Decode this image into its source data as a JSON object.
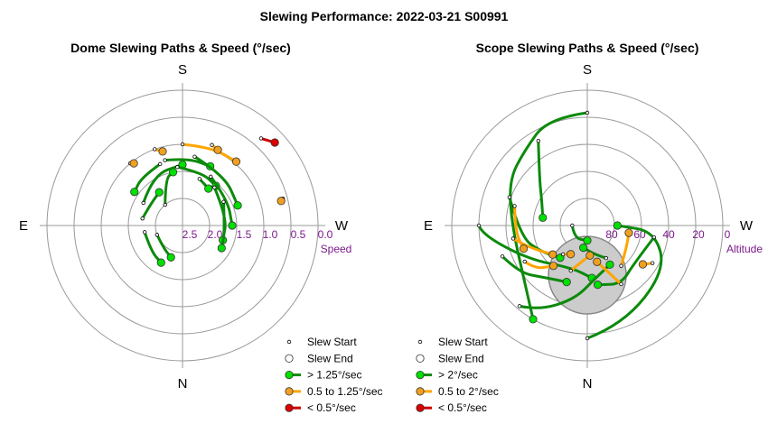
{
  "title": "Slewing Performance: 2022-03-21 S00991",
  "colors": {
    "fast": "#0b8a0b",
    "fast_fill": "#00e000",
    "mid": "#ffa500",
    "mid_fill": "#f0a020",
    "slow": "#cc0000",
    "slow_fill": "#dd0000",
    "grid": "#999999",
    "label": "#7a1a8a"
  },
  "chart_data": [
    {
      "type": "polar",
      "title": "Dome Slewing Paths & Speed (°/sec)",
      "directions": {
        "top": "S",
        "bottom": "N",
        "left": "E",
        "right": "W"
      },
      "radial_axis": {
        "label": "Speed",
        "ticks": [
          "2.5",
          "2.0",
          "1.5",
          "1.0",
          "0.5",
          "0.0"
        ],
        "reversed": true,
        "range": [
          0,
          3.0
        ]
      },
      "legend": [
        "Slew Start",
        "Slew End",
        "> 1.25°/sec",
        "0.5 to 1.25°/sec",
        "< 0.5°/sec"
      ],
      "paths": [
        {
          "speed": "fast",
          "points": [
            [
              -40,
              2.4
            ],
            [
              -20,
              1.9
            ],
            [
              -10,
              1.8
            ]
          ]
        },
        {
          "speed": "fast",
          "points": [
            [
              -60,
              2.0
            ],
            [
              -30,
              1.7
            ],
            [
              0,
              1.65
            ]
          ]
        },
        {
          "speed": "fast",
          "points": [
            [
              -80,
              2.1
            ],
            [
              -60,
              2.15
            ],
            [
              -35,
              2.1
            ]
          ]
        },
        {
          "speed": "fast",
          "points": [
            [
              -15,
              1.5
            ],
            [
              5,
              1.5
            ],
            [
              25,
              1.55
            ]
          ]
        },
        {
          "speed": "fast",
          "points": [
            [
              -5,
              1.7
            ],
            [
              20,
              1.75
            ],
            [
              40,
              1.85
            ]
          ]
        },
        {
          "speed": "fast",
          "points": [
            [
              -100,
              2.15
            ],
            [
              -130,
              2.1
            ],
            [
              -150,
              2.05
            ]
          ]
        },
        {
          "speed": "fast",
          "points": [
            [
              -110,
              2.4
            ],
            [
              -140,
              2.35
            ],
            [
              -160,
              2.25
            ]
          ]
        },
        {
          "speed": "fast",
          "points": [
            [
              40,
              1.9
            ],
            [
              80,
              2.0
            ],
            [
              110,
              2.05
            ]
          ]
        },
        {
          "speed": "fast",
          "points": [
            [
              30,
              1.75
            ],
            [
              60,
              1.85
            ],
            [
              90,
              1.9
            ]
          ]
        },
        {
          "speed": "fast",
          "points": [
            [
              10,
              1.45
            ],
            [
              40,
              1.55
            ],
            [
              70,
              1.7
            ]
          ]
        },
        {
          "speed": "fast",
          "points": [
            [
              60,
              1.95
            ],
            [
              100,
              2.05
            ],
            [
              120,
              2.0
            ]
          ]
        },
        {
          "speed": "fast",
          "points": [
            [
              -20,
              1.55
            ],
            [
              -40,
              1.6
            ],
            [
              -55,
              1.7
            ]
          ]
        },
        {
          "speed": "fast",
          "points": [
            [
              20,
              1.9
            ],
            [
              35,
              2.0
            ]
          ]
        },
        {
          "speed": "mid",
          "points": [
            [
              0,
              1.2
            ],
            [
              20,
              1.15
            ],
            [
              40,
              1.15
            ]
          ]
        },
        {
          "speed": "mid",
          "points": [
            [
              -20,
              1.2
            ],
            [
              -15,
              1.3
            ]
          ]
        },
        {
          "speed": "mid",
          "points": [
            [
              20,
              1.1
            ],
            [
              25,
              1.15
            ]
          ]
        },
        {
          "speed": "mid",
          "points": [
            [
              -40,
              1.2
            ],
            [
              -38,
              1.25
            ]
          ]
        },
        {
          "speed": "mid",
          "points": [
            [
              75,
              0.7
            ],
            [
              76,
              0.75
            ]
          ]
        },
        {
          "speed": "slow",
          "points": [
            [
              42,
              0.4
            ],
            [
              48,
              0.25
            ]
          ]
        }
      ]
    },
    {
      "type": "polar",
      "title": "Scope Slewing Paths & Speed (°/sec)",
      "directions": {
        "top": "S",
        "bottom": "N",
        "left": "E",
        "right": "W"
      },
      "radial_axis": {
        "label": "Altitude",
        "ticks": [
          "80",
          "60",
          "40",
          "20",
          "0"
        ],
        "range": [
          0,
          90
        ]
      },
      "zenith_exclusion": {
        "azimuth": 0,
        "altitude": 60
      },
      "legend": [
        "Slew Start",
        "Slew End",
        "> 2°/sec",
        "0.5 to 2°/sec",
        "< 0.5°/sec"
      ],
      "paths": [
        {
          "speed": "fast",
          "points": [
            [
              180,
              15
            ],
            [
              160,
              20
            ],
            [
              120,
              30
            ],
            [
              95,
              45
            ],
            [
              90,
              70
            ]
          ]
        },
        {
          "speed": "fast",
          "points": [
            [
              0,
              15
            ],
            [
              -20,
              14
            ],
            [
              -40,
              25
            ],
            [
              -60,
              30
            ],
            [
              -90,
              40
            ],
            [
              -130,
              35
            ],
            [
              -150,
              18
            ]
          ]
        },
        {
          "speed": "fast",
          "points": [
            [
              -90,
              18
            ],
            [
              -95,
              20
            ],
            [
              -120,
              45
            ],
            [
              -160,
              60
            ],
            [
              175,
              55
            ]
          ]
        },
        {
          "speed": "fast",
          "points": [
            [
              100,
              45
            ],
            [
              130,
              50
            ],
            [
              150,
              45
            ],
            [
              170,
              50
            ]
          ]
        },
        {
          "speed": "fast",
          "points": [
            [
              -140,
              20
            ],
            [
              -150,
              25
            ],
            [
              -170,
              40
            ],
            [
              170,
              55
            ],
            [
              150,
              60
            ]
          ]
        },
        {
          "speed": "fast",
          "points": [
            [
              -110,
              30
            ],
            [
              -125,
              35
            ],
            [
              -140,
              45
            ],
            [
              -160,
              50
            ]
          ]
        },
        {
          "speed": "fast",
          "points": [
            [
              -70,
              35
            ],
            [
              -100,
              45
            ],
            [
              -120,
              55
            ],
            [
              -140,
              62
            ]
          ]
        },
        {
          "speed": "fast",
          "points": [
            [
              -30,
              25
            ],
            [
              -45,
              45
            ],
            [
              -60,
              55
            ],
            [
              -80,
              60
            ]
          ]
        },
        {
          "speed": "fast",
          "points": [
            [
              150,
              65
            ],
            [
              165,
              70
            ],
            [
              -170,
              75
            ]
          ]
        },
        {
          "speed": "fast",
          "points": [
            [
              -90,
              80
            ],
            [
              -135,
              78
            ],
            [
              180,
              80
            ]
          ]
        },
        {
          "speed": "mid",
          "points": [
            [
              150,
              45
            ],
            [
              155,
              55
            ],
            [
              165,
              65
            ]
          ]
        },
        {
          "speed": "mid",
          "points": [
            [
              -120,
              42
            ],
            [
              -130,
              45
            ],
            [
              -140,
              55
            ]
          ]
        },
        {
          "speed": "mid",
          "points": [
            [
              140,
              55
            ],
            [
              120,
              60
            ],
            [
              100,
              62
            ]
          ]
        },
        {
          "speed": "mid",
          "points": [
            [
              -160,
              58
            ],
            [
              -170,
              65
            ],
            [
              175,
              70
            ]
          ]
        },
        {
          "speed": "mid",
          "points": [
            [
              -100,
              40
            ],
            [
              -110,
              48
            ],
            [
              -130,
              60
            ]
          ]
        },
        {
          "speed": "mid",
          "points": [
            [
              -75,
              40
            ],
            [
              -95,
              42
            ],
            [
              -110,
              45
            ]
          ]
        },
        {
          "speed": "mid",
          "points": [
            [
              120,
              40
            ],
            [
              125,
              45
            ]
          ]
        },
        {
          "speed": "mid",
          "points": [
            [
              -140,
              65
            ],
            [
              -150,
              68
            ]
          ]
        }
      ]
    }
  ]
}
